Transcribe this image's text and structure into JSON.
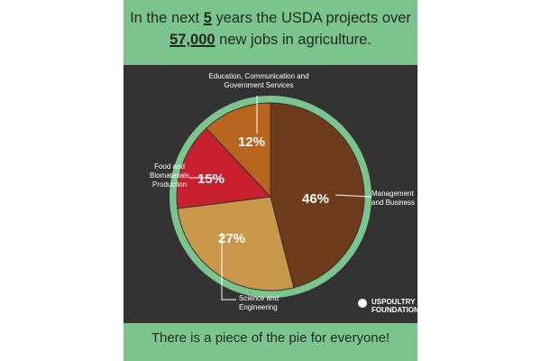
{
  "chart_data": {
    "type": "pie",
    "title": [
      "In the next ",
      "5",
      " years the USDA projects over",
      "57,000",
      " new jobs in agriculture."
    ],
    "categories": [
      "Management and Business",
      "Science and Engineering",
      "Food and Biomaterials Production",
      "Education, Communication and Government Services"
    ],
    "values": [
      46,
      27,
      15,
      12
    ],
    "value_labels": [
      "46%",
      "27%",
      "15%",
      "12%"
    ],
    "colors": [
      "#6e3b1c",
      "#c9974a",
      "#c8202f",
      "#b8651f"
    ],
    "logo": [
      "USPOULTRY",
      "FOUNDATION"
    ],
    "footer": "There is a piece of the pie for everyone!"
  }
}
